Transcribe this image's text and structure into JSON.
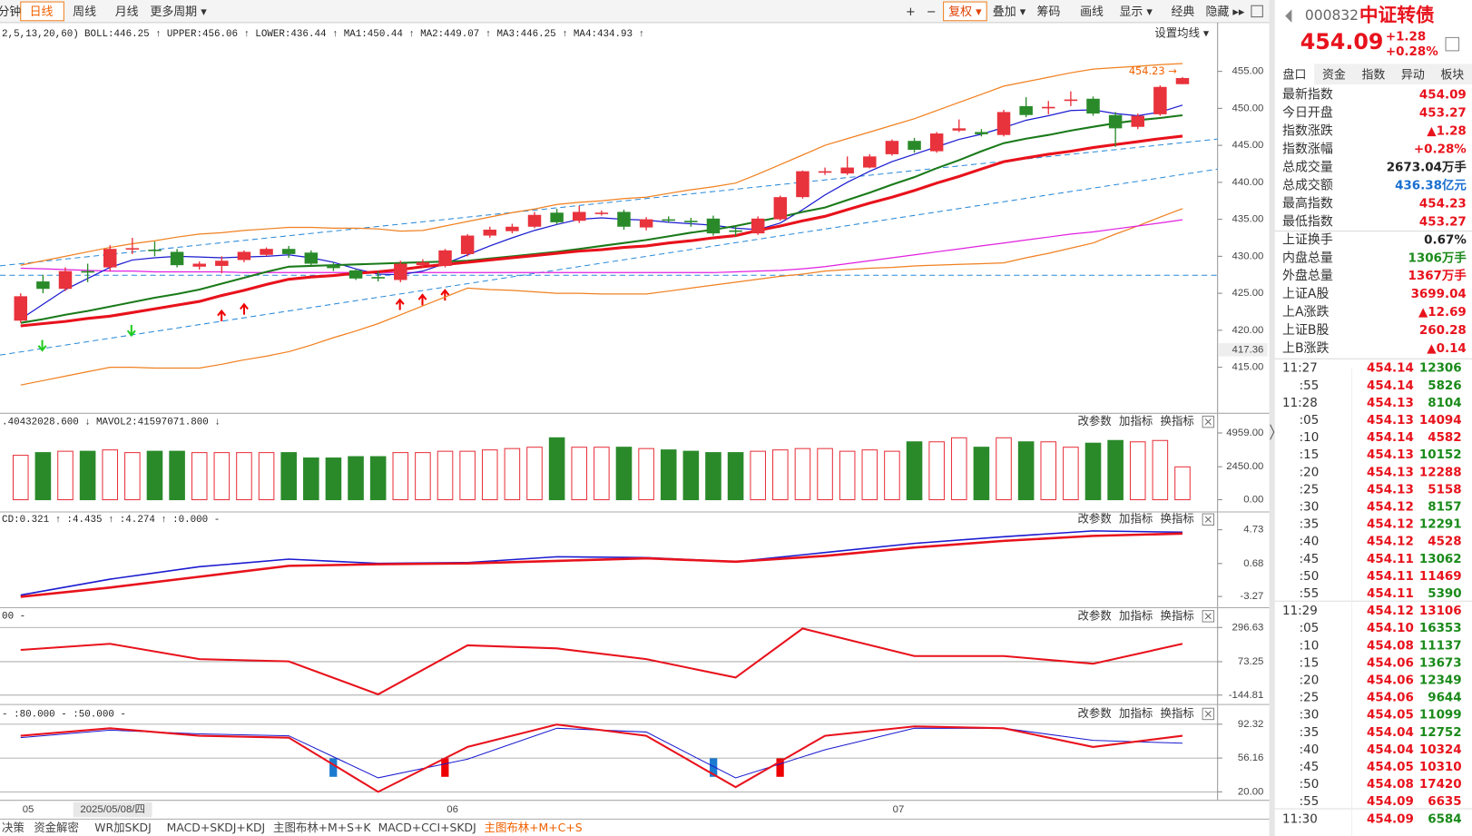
{
  "toolbar": {
    "left": [
      "分钟",
      "日线",
      "周线",
      "月线",
      "更多周期 ▾"
    ],
    "right": [
      "+",
      "−",
      "复权 ▾",
      "叠加 ▾",
      "筹码",
      "画线",
      "显示 ▾",
      "经典",
      "隐藏 ▸▸"
    ]
  },
  "main_chart": {
    "type": "candlestick",
    "legend": [
      {
        "text": "2,5,13,20,60)",
        "color": "#222"
      },
      {
        "text": "BOLL:446.25 ↑",
        "color": "#e8323c"
      },
      {
        "text": "UPPER:456.06 ↑",
        "color": "#f08020"
      },
      {
        "text": "LOWER:436.44 ↑",
        "color": "#f08020"
      },
      {
        "text": "MA1:450.44 ↑",
        "color": "#1a1ad0"
      },
      {
        "text": "MA2:449.07 ↑",
        "color": "#1a7a1a"
      },
      {
        "text": "MA3:446.25 ↑",
        "color": "#e8323c"
      },
      {
        "text": "MA4:434.93 ↑",
        "color": "#e020e0"
      }
    ],
    "settings": "设置均线 ▾",
    "ylim": [
      409.03,
      459.06
    ],
    "yticks": [
      {
        "value": 455,
        "label": "455.00"
      },
      {
        "value": 450,
        "label": "450.00"
      },
      {
        "value": 445,
        "label": "445.00"
      },
      {
        "value": 440,
        "label": "440.00"
      },
      {
        "value": 435,
        "label": "435.00"
      },
      {
        "value": 430,
        "label": "430.00"
      },
      {
        "value": 425,
        "label": "425.00"
      },
      {
        "value": 420,
        "label": "420.00"
      },
      {
        "value": 415,
        "label": "415.00"
      }
    ],
    "cursor_value": 417.36,
    "high_label": "454.23 →",
    "open": [
      421.3,
      426.6,
      425.6,
      428,
      428.5,
      431,
      430.9,
      430.6,
      428.6,
      428.7,
      429.5,
      430.2,
      431,
      430.5,
      428.8,
      428.1,
      427.2,
      426.8,
      428.8,
      428.7,
      430.3,
      432.8,
      433.4,
      434,
      435.9,
      434.8,
      435.8,
      436,
      433.9,
      435,
      434.8,
      435.1,
      433.5,
      433.1,
      435,
      438,
      441.3,
      441.2,
      442,
      443.8,
      445.6,
      444.2,
      447,
      446.8,
      446.4,
      450.3,
      450,
      451,
      451.3,
      449.1,
      447.5,
      449.2,
      453.27
    ],
    "close": [
      424.6,
      425.6,
      428,
      427.8,
      431,
      431.1,
      430.7,
      428.8,
      429,
      429.4,
      430.6,
      431,
      430.3,
      429,
      428.4,
      427,
      427,
      429,
      429.2,
      430.8,
      432.8,
      433.6,
      434,
      435.6,
      434.6,
      436,
      435.9,
      434,
      435,
      434.9,
      434.6,
      433.1,
      433.3,
      435.1,
      438,
      441.5,
      441.5,
      442,
      443.5,
      445.6,
      444.4,
      446.6,
      447.3,
      446.5,
      449.5,
      449.1,
      450.2,
      451.2,
      449.3,
      447.3,
      449,
      452.9,
      454.09
    ],
    "high": [
      425,
      427.5,
      428.5,
      429,
      431.5,
      432.5,
      432,
      431,
      429.3,
      430,
      430.8,
      431.2,
      431.4,
      430.8,
      429.2,
      428.3,
      428,
      429.4,
      429.6,
      431,
      433,
      434,
      434.4,
      436,
      436.4,
      436.8,
      436.2,
      436.3,
      435.3,
      435.4,
      435.2,
      435.5,
      434,
      435.4,
      438.2,
      441.6,
      442,
      443.5,
      443.8,
      445.8,
      446,
      446.8,
      448.5,
      447.2,
      449.8,
      451.5,
      451,
      452.3,
      451.6,
      449.5,
      449.3,
      453.1,
      454.23
    ],
    "low": [
      421,
      425,
      425.3,
      426.5,
      428,
      430.3,
      430,
      428.5,
      428.2,
      427.7,
      429.2,
      430,
      429.8,
      428.7,
      428,
      426.8,
      426.6,
      426.5,
      428.5,
      428.5,
      430,
      432.5,
      433.1,
      433.8,
      434.3,
      434.5,
      435.5,
      433.6,
      433.5,
      434.6,
      434,
      432.8,
      432.7,
      432.9,
      434.8,
      437.8,
      441,
      441,
      441.9,
      443.6,
      444,
      444,
      446.8,
      446.2,
      446.2,
      448.8,
      449.2,
      450.3,
      449,
      444.8,
      447.2,
      449,
      453.27
    ],
    "up_color": "#e8323c",
    "down_color": "#2a8a2a",
    "lines": [
      {
        "color": "#f08020",
        "width": 1.2,
        "values": [
          428.8,
          429.4,
          430,
          430.6,
          431.2,
          431.7,
          432.1,
          432.6,
          433,
          433.2,
          433.5,
          433.7,
          433.9,
          433.9,
          433.8,
          433.8,
          433.7,
          433.4,
          433.5,
          434.1,
          434.7,
          435.3,
          435.9,
          436.4,
          437,
          437.3,
          437.5,
          437.8,
          438,
          438.5,
          439,
          439.4,
          439.9,
          441.1,
          442.4,
          443.7,
          445,
          445.9,
          446.8,
          447.7,
          448.6,
          449.7,
          450.8,
          451.9,
          453,
          453.6,
          454.2,
          454.8,
          455.3,
          455.5,
          455.7,
          455.9,
          456.06
        ]
      },
      {
        "color": "#f08020",
        "width": 1.2,
        "values": [
          412.6,
          413.2,
          413.8,
          414.4,
          415,
          415,
          414.9,
          414.9,
          414.9,
          415.4,
          416,
          416.5,
          417.1,
          418,
          419,
          419.9,
          420.9,
          422.1,
          423.3,
          424.5,
          425.7,
          425.5,
          425.4,
          425.2,
          425,
          425,
          424.9,
          424.9,
          424.9,
          425.3,
          425.7,
          426.1,
          426.5,
          426.9,
          427.3,
          427.6,
          428,
          428.2,
          428.4,
          428.5,
          428.7,
          428.8,
          428.9,
          429,
          429.1,
          429.8,
          430.4,
          431.1,
          431.8,
          433,
          434.1,
          435.3,
          436.44
        ]
      },
      {
        "color": "#e020e0",
        "width": 1.2,
        "values": [
          428.4,
          428.3,
          428.2,
          428.1,
          428,
          428,
          427.9,
          427.9,
          427.9,
          427.9,
          427.8,
          427.8,
          427.8,
          427.8,
          427.8,
          427.8,
          427.8,
          427.8,
          427.8,
          427.8,
          427.8,
          427.8,
          427.8,
          427.8,
          427.8,
          427.8,
          427.8,
          427.8,
          427.8,
          427.8,
          427.8,
          427.8,
          427.9,
          428,
          428.1,
          428.3,
          428.6,
          429,
          429.4,
          429.8,
          430.2,
          430.6,
          431,
          431.4,
          431.8,
          432.2,
          432.6,
          433,
          433.3,
          433.7,
          434.1,
          434.5,
          434.93
        ]
      },
      {
        "color": "#1a1ad0",
        "width": 1.2,
        "values": [
          421.5,
          423.5,
          425.5,
          427,
          428.5,
          429.5,
          429.8,
          430,
          429.9,
          429.8,
          429.9,
          430,
          430.2,
          429.8,
          429.2,
          428.3,
          427.6,
          427.5,
          428,
          429,
          430.2,
          431.4,
          432.5,
          433.5,
          434.3,
          435,
          435.2,
          435,
          434.9,
          434.6,
          434.4,
          434.2,
          433.8,
          433.6,
          434.5,
          436.3,
          438.3,
          440,
          441.5,
          442.8,
          443.8,
          444.8,
          445.8,
          446.5,
          447.4,
          448.4,
          449,
          449.7,
          449.8,
          449.3,
          449,
          449.5,
          450.44
        ]
      },
      {
        "color": "#1a7a1a",
        "width": 2,
        "values": [
          421,
          421.5,
          422.1,
          422.6,
          423.2,
          423.8,
          424.4,
          424.9,
          425.5,
          426.3,
          427.1,
          427.9,
          428.6,
          428.7,
          428.8,
          428.9,
          429,
          429.1,
          429.2,
          429.3,
          429.4,
          429.7,
          430,
          430.3,
          430.6,
          431,
          431.4,
          431.8,
          432.2,
          432.7,
          433.2,
          433.6,
          434.1,
          434.7,
          435.3,
          436,
          436.6,
          437.6,
          438.6,
          439.7,
          440.7,
          441.9,
          443,
          444.2,
          445.3,
          445.9,
          446.4,
          447,
          447.5,
          448,
          448.4,
          448.7,
          449.07
        ]
      },
      {
        "color": "#e8121c",
        "width": 3,
        "values": [
          420.6,
          420.9,
          421.2,
          421.6,
          421.9,
          422.4,
          422.9,
          423.4,
          423.9,
          424.7,
          425.4,
          426.2,
          426.9,
          427.2,
          427.4,
          427.7,
          427.9,
          428.2,
          428.6,
          428.9,
          429.2,
          429.5,
          429.8,
          430.1,
          430.4,
          430.7,
          430.9,
          431.2,
          431.4,
          431.8,
          432.1,
          432.5,
          432.8,
          433.5,
          434.1,
          434.8,
          435.4,
          436.3,
          437.2,
          438,
          438.9,
          439.9,
          440.8,
          441.8,
          442.8,
          443.3,
          443.8,
          444.2,
          444.7,
          445.1,
          445.5,
          445.9,
          446.25
        ]
      }
    ]
  },
  "panel_buttons": [
    "改参数",
    "加指标",
    "换指标"
  ],
  "volume_panel": {
    "type": "bar",
    "legend": [
      {
        "text": ".40432028.600 ↓",
        "color": "#e0a000"
      },
      {
        "text": "MAVOL2:41597071.800 ↓",
        "color": "#e020e0"
      }
    ],
    "ylim": [
      0,
      6000
    ],
    "yticks": [
      {
        "value": 4959,
        "label": "4959.00"
      },
      {
        "value": 2450,
        "label": "2450.00"
      },
      {
        "value": 0,
        "label": "0.00"
      }
    ],
    "values": [
      3300,
      3500,
      3600,
      3600,
      3700,
      3500,
      3600,
      3600,
      3500,
      3500,
      3500,
      3500,
      3500,
      3100,
      3100,
      3200,
      3200,
      3500,
      3500,
      3600,
      3600,
      3700,
      3800,
      3900,
      4600,
      3900,
      3900,
      3900,
      3800,
      3700,
      3600,
      3500,
      3500,
      3600,
      3700,
      3800,
      3800,
      3600,
      3700,
      3600,
      4300,
      4300,
      4600,
      3900,
      4600,
      4300,
      4300,
      3900,
      4200,
      4400,
      4300,
      4400,
      2440
    ]
  },
  "macd_panel": {
    "type": "line",
    "legend": [
      {
        "text": "CD:0.321 ↑",
        "color": "#e8323c"
      },
      {
        "text": ":4.435 ↑",
        "color": "#1a1ad0"
      },
      {
        "text": ":4.274 ↑",
        "color": "#e8323c"
      },
      {
        "text": ":0.000 -",
        "color": "#999"
      }
    ],
    "ylim": [
      -3.27,
      4.73
    ],
    "yticks": [
      4.73,
      0.68,
      -3.27
    ],
    "x": [
      0,
      4,
      8,
      12,
      16,
      20,
      24,
      28,
      32,
      36,
      40,
      44,
      48,
      52
    ],
    "series": [
      {
        "color": "#1a1ad0",
        "width": 1.5,
        "values": [
          -3.1,
          -1.2,
          0.3,
          1.2,
          0.7,
          0.8,
          1.5,
          1.4,
          0.9,
          2.0,
          3.1,
          3.9,
          4.6,
          4.435
        ]
      },
      {
        "color": "#e8121c",
        "width": 2.5,
        "values": [
          -3.3,
          -2.2,
          -0.9,
          0.4,
          0.6,
          0.7,
          1.0,
          1.3,
          0.9,
          1.6,
          2.6,
          3.4,
          4.0,
          4.274
        ]
      }
    ]
  },
  "cci_panel": {
    "type": "line",
    "legend": [
      {
        "text": "00 -",
        "color": "#666"
      }
    ],
    "ylim": [
      -144.81,
      296.63
    ],
    "yticks": [
      296.63,
      73.25,
      -144.81
    ],
    "x": [
      0,
      4,
      8,
      12,
      16,
      20,
      24,
      28,
      32,
      35,
      40,
      44,
      48,
      52
    ],
    "series": [
      {
        "color": "#e8121c",
        "width": 2,
        "values": [
          150,
          190,
          90,
          75,
          -140,
          180,
          160,
          90,
          -30,
          290,
          110,
          110,
          60,
          190
        ]
      }
    ]
  },
  "kdj_panel": {
    "type": "line",
    "legend": [
      {
        "text": "- :80.000 - :50.000 -",
        "color": "#777"
      }
    ],
    "ylim": [
      20,
      92.32
    ],
    "yticks": [
      92.32,
      56.16,
      {
        "value": 20,
        "label": "20.00"
      }
    ],
    "x": [
      0,
      4,
      8,
      12,
      16,
      20,
      24,
      28,
      32,
      36,
      40,
      44,
      48,
      52
    ],
    "series": [
      {
        "color": "#1a1ad0",
        "width": 1,
        "values": [
          78,
          86,
          82,
          80,
          35,
          55,
          88,
          84,
          35,
          65,
          88,
          88,
          75,
          72
        ]
      },
      {
        "color": "#e8121c",
        "width": 2,
        "values": [
          80,
          88,
          80,
          78,
          20,
          68,
          92,
          80,
          25,
          80,
          90,
          88,
          68,
          80
        ]
      }
    ]
  },
  "x_axis": [
    "05",
    "2025/05/08/四",
    "06",
    "07"
  ],
  "bottom_tabs": [
    "决策",
    "资金解密",
    "WR加SKDJ",
    "MACD+SKDJ+KDJ",
    "主图布林+M+S+K",
    "MACD+CCI+SKDJ",
    "主图布林+M+C+S"
  ],
  "quote": {
    "code": "000832",
    "name": "中证转债",
    "price": "454.09",
    "change": "+1.28",
    "percent": "+0.28%"
  },
  "tabs": [
    "盘口",
    "资金",
    "指数",
    "异动",
    "板块"
  ],
  "info": [
    {
      "label": "最新指数",
      "value": "454.09",
      "color": "#e8121c"
    },
    {
      "label": "今日开盘",
      "value": "453.27",
      "color": "#e8121c"
    },
    {
      "label": "指数涨跌",
      "value": "▲1.28",
      "color": "#e8121c"
    },
    {
      "label": "指数涨幅",
      "value": "+0.28%",
      "color": "#e8121c"
    },
    {
      "label": "总成交量",
      "value": "2673.04万手",
      "color": "#222"
    },
    {
      "label": "总成交额",
      "value": "436.38亿元",
      "color": "#1a6fd0"
    },
    {
      "label": "最高指数",
      "value": "454.23",
      "color": "#e8121c"
    },
    {
      "label": "最低指数",
      "value": "453.27",
      "color": "#e8121c"
    },
    {
      "label": "上证换手",
      "value": "0.67%",
      "color": "#222"
    },
    {
      "label": "内盘总量",
      "value": "1306万手",
      "color": "#1a8a1a"
    },
    {
      "label": "外盘总量",
      "value": "1367万手",
      "color": "#e8121c"
    },
    {
      "label": "上证A股",
      "value": "3699.04",
      "color": "#e8121c"
    },
    {
      "label": "上A涨跌",
      "value": "▲12.69",
      "color": "#e8121c"
    },
    {
      "label": "上证B股",
      "value": "260.28",
      "color": "#e8121c"
    },
    {
      "label": "上B涨跌",
      "value": "▲0.14",
      "color": "#e8121c"
    }
  ],
  "trades": [
    {
      "time": "11:27",
      "price": "454.14",
      "volume": "12306",
      "color": "#1a8a1a"
    },
    {
      "time": ":55",
      "price": "454.14",
      "volume": "5826",
      "color": "#1a8a1a"
    },
    {
      "time": "11:28",
      "price": "454.13",
      "volume": "8104",
      "color": "#1a8a1a"
    },
    {
      "time": ":05",
      "price": "454.13",
      "volume": "14094",
      "color": "#e8121c"
    },
    {
      "time": ":10",
      "price": "454.14",
      "volume": "4582",
      "color": "#e8121c"
    },
    {
      "time": ":15",
      "price": "454.13",
      "volume": "10152",
      "color": "#1a8a1a"
    },
    {
      "time": ":20",
      "price": "454.13",
      "volume": "12288",
      "color": "#e8121c"
    },
    {
      "time": ":25",
      "price": "454.13",
      "volume": "5158",
      "color": "#e8121c"
    },
    {
      "time": ":30",
      "price": "454.12",
      "volume": "8157",
      "color": "#1a8a1a"
    },
    {
      "time": ":35",
      "price": "454.12",
      "volume": "12291",
      "color": "#1a8a1a"
    },
    {
      "time": ":40",
      "price": "454.12",
      "volume": "4528",
      "color": "#e8121c"
    },
    {
      "time": ":45",
      "price": "454.11",
      "volume": "13062",
      "color": "#1a8a1a"
    },
    {
      "time": ":50",
      "price": "454.11",
      "volume": "11469",
      "color": "#e8121c"
    },
    {
      "time": ":55",
      "price": "454.11",
      "volume": "5390",
      "color": "#1a8a1a"
    },
    {
      "time": "11:29",
      "price": "454.12",
      "volume": "13106",
      "color": "#e8121c"
    },
    {
      "time": ":05",
      "price": "454.10",
      "volume": "16353",
      "color": "#1a8a1a"
    },
    {
      "time": ":10",
      "price": "454.08",
      "volume": "11137",
      "color": "#1a8a1a"
    },
    {
      "time": ":15",
      "price": "454.06",
      "volume": "13673",
      "color": "#1a8a1a"
    },
    {
      "time": ":20",
      "price": "454.06",
      "volume": "12349",
      "color": "#1a8a1a"
    },
    {
      "time": ":25",
      "price": "454.06",
      "volume": "9644",
      "color": "#1a8a1a"
    },
    {
      "time": ":30",
      "price": "454.05",
      "volume": "11099",
      "color": "#1a8a1a"
    },
    {
      "time": ":35",
      "price": "454.04",
      "volume": "12752",
      "color": "#1a8a1a"
    },
    {
      "time": ":40",
      "price": "454.04",
      "volume": "10324",
      "color": "#e8121c"
    },
    {
      "time": ":45",
      "price": "454.05",
      "volume": "10310",
      "color": "#e8121c"
    },
    {
      "time": ":50",
      "price": "454.08",
      "volume": "17420",
      "color": "#e8121c"
    },
    {
      "time": ":55",
      "price": "454.09",
      "volume": "6635",
      "color": "#e8121c"
    },
    {
      "time": "11:30",
      "price": "454.09",
      "volume": "6584",
      "color": "#1a8a1a"
    }
  ]
}
